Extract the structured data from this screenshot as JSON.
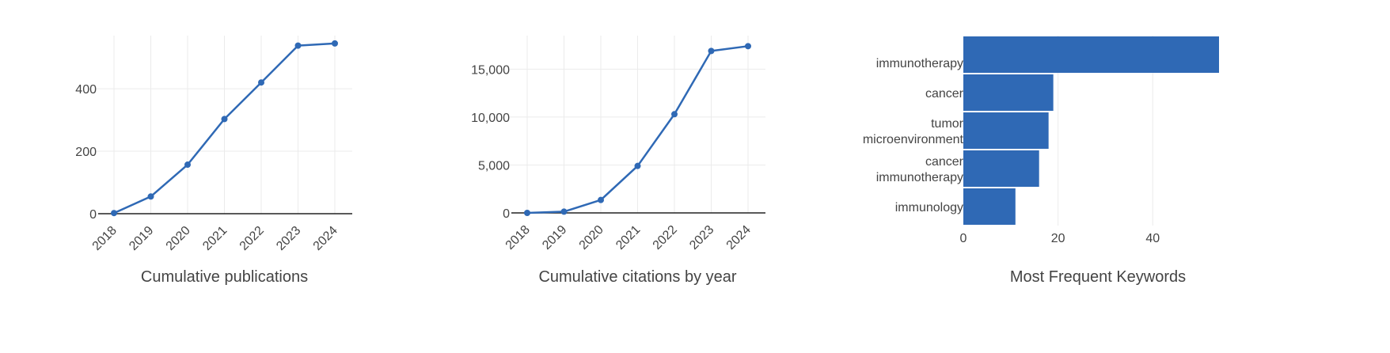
{
  "colors": {
    "series": "#2f69b5",
    "grid": "#ebebeb",
    "axis": "#222222",
    "text": "#444444"
  },
  "chart_data": [
    {
      "type": "line",
      "xlabel": "Cumulative publications",
      "ylabel": "",
      "x": [
        "2018",
        "2019",
        "2020",
        "2021",
        "2022",
        "2023",
        "2024"
      ],
      "values": [
        2,
        55,
        157,
        303,
        420,
        538,
        545
      ],
      "ylim": [
        0,
        570
      ],
      "yticks": [
        0,
        200,
        400
      ],
      "ytick_labels": [
        "0",
        "200",
        "400"
      ],
      "grid": true,
      "legend": "none"
    },
    {
      "type": "line",
      "xlabel": "Cumulative citations by year",
      "ylabel": "",
      "x": [
        "2018",
        "2019",
        "2020",
        "2021",
        "2022",
        "2023",
        "2024"
      ],
      "values": [
        0,
        130,
        1350,
        4900,
        10300,
        16900,
        17400
      ],
      "ylim": [
        0,
        18500
      ],
      "yticks": [
        0,
        5000,
        10000,
        15000
      ],
      "ytick_labels": [
        "0",
        "5,000",
        "10,000",
        "15,000"
      ],
      "grid": true,
      "legend": "none"
    },
    {
      "type": "bar",
      "orientation": "horizontal",
      "xlabel": "Most Frequent Keywords",
      "ylabel": "",
      "categories": [
        [
          "immunotherapy"
        ],
        [
          "cancer"
        ],
        [
          "tumor",
          "microenvironment"
        ],
        [
          "cancer",
          "immunotherapy"
        ],
        [
          "immunology"
        ]
      ],
      "values": [
        54,
        19,
        18,
        16,
        11
      ],
      "xlim": [
        0,
        54
      ],
      "xticks": [
        0,
        20,
        40
      ],
      "xtick_labels": [
        "0",
        "20",
        "40"
      ],
      "grid": true,
      "legend": "none"
    }
  ]
}
